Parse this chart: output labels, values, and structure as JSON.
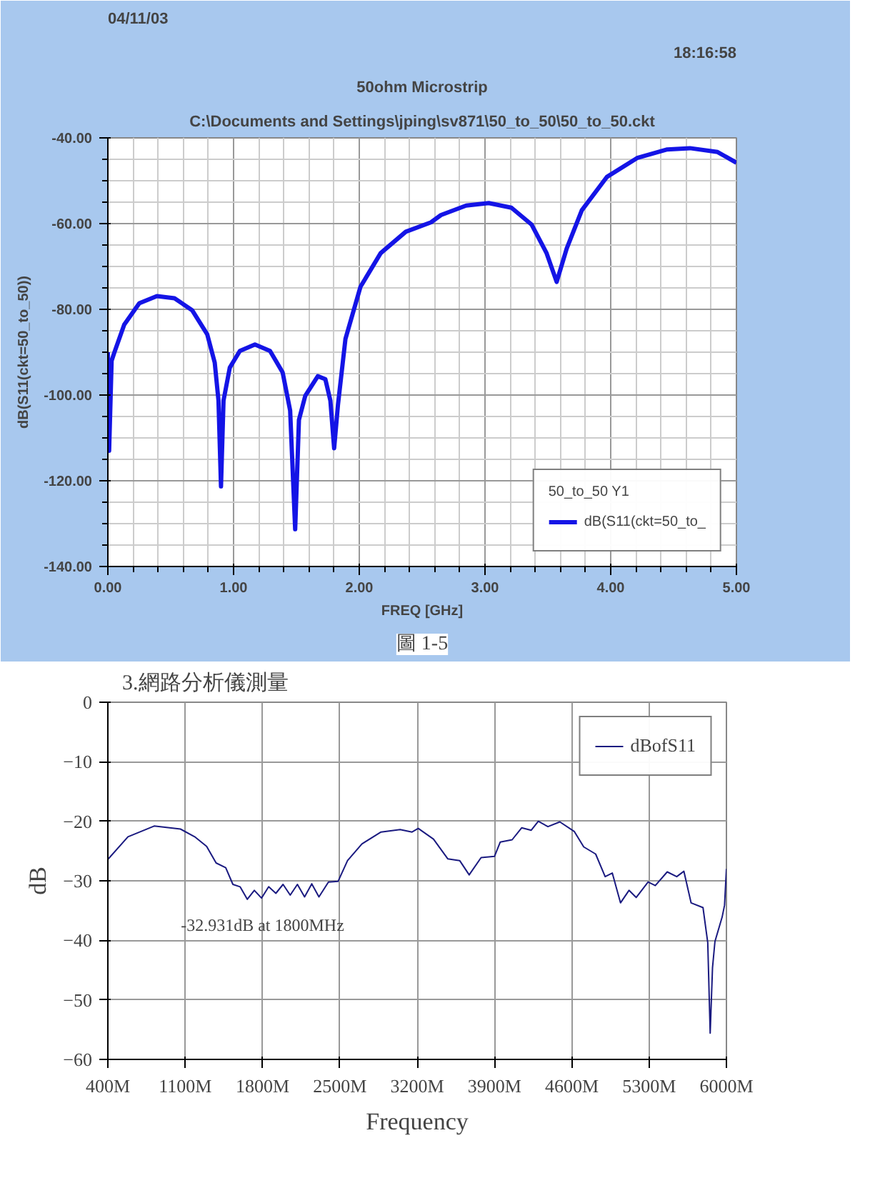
{
  "chart_data": [
    {
      "type": "line",
      "title": "50ohm Microstrip",
      "subtitle": "C:\\Documents and Settings\\jping\\sv871\\50_to_50\\50_to_50.ckt",
      "xlabel": "FREQ [GHz]",
      "ylabel": "dB(S11(ckt=50_to_50))",
      "annotations": [
        "04/11/03",
        "18:16:58",
        "圖 1-5"
      ],
      "legend": "bottom right",
      "legend_title": "50_to_50 Y1",
      "grid": true,
      "xlim": [
        0,
        5
      ],
      "ylim": [
        -140,
        -40
      ],
      "xticks": [
        {
          "value": 0,
          "label": "0.00"
        },
        {
          "value": 1,
          "label": "1.00"
        },
        {
          "value": 2,
          "label": "2.00"
        },
        {
          "value": 3,
          "label": "3.00"
        },
        {
          "value": 4,
          "label": "4.00"
        },
        {
          "value": 5,
          "label": "5.00"
        }
      ],
      "yticks": [
        {
          "value": -140,
          "label": "-140.00"
        },
        {
          "value": -120,
          "label": "-120.00"
        },
        {
          "value": -100,
          "label": "-100.00"
        },
        {
          "value": -80,
          "label": "-80.00"
        },
        {
          "value": -60,
          "label": "-60.00"
        },
        {
          "value": -40,
          "label": "-40.00"
        }
      ],
      "x": [
        0.0,
        0.01,
        0.03,
        0.05,
        0.13,
        0.25,
        0.39,
        0.53,
        0.67,
        0.79,
        0.85,
        0.88,
        0.9,
        0.92,
        0.97,
        1.05,
        1.17,
        1.29,
        1.39,
        1.45,
        1.49,
        1.52,
        1.57,
        1.67,
        1.73,
        1.77,
        1.8,
        1.83,
        1.89,
        2.01,
        2.17,
        2.37,
        2.57,
        2.65,
        2.85,
        3.03,
        3.21,
        3.37,
        3.49,
        3.57,
        3.65,
        3.77,
        3.97,
        4.21,
        4.45,
        4.63,
        4.85,
        5.0
      ],
      "series": [
        {
          "name": "dB(S11(ckt=50_to_",
          "color": "#1414e6",
          "values": [
            -90,
            -113,
            -92,
            -90.2,
            -83.6,
            -78.6,
            -76.9,
            -77.4,
            -80.2,
            -85.8,
            -92.4,
            -101.3,
            -121.3,
            -101.3,
            -93.6,
            -89.7,
            -88.2,
            -89.7,
            -94.7,
            -103.6,
            -131.3,
            -105.8,
            -100.2,
            -95.6,
            -96.3,
            -101.3,
            -112.4,
            -102.4,
            -86.9,
            -74.7,
            -66.9,
            -61.9,
            -59.7,
            -58.0,
            -55.8,
            -55.2,
            -56.3,
            -60.2,
            -66.9,
            -73.6,
            -65.8,
            -56.9,
            -49.1,
            -44.7,
            -42.7,
            -42.4,
            -43.3,
            -45.8
          ]
        }
      ]
    },
    {
      "type": "line",
      "title": "3.網路分析儀測量",
      "xlabel": "Frequency",
      "ylabel": "dB",
      "annotations": [
        {
          "text": "-32.931dB at 1800MHz",
          "x": 1800,
          "y": -32.931
        }
      ],
      "legend": "top right",
      "grid": true,
      "xlim": [
        400,
        6000
      ],
      "ylim": [
        -60,
        0
      ],
      "xticks": [
        {
          "value": 400,
          "label": "400M"
        },
        {
          "value": 1100,
          "label": "1100M"
        },
        {
          "value": 1800,
          "label": "1800M"
        },
        {
          "value": 2500,
          "label": "2500M"
        },
        {
          "value": 3200,
          "label": "3200M"
        },
        {
          "value": 3900,
          "label": "3900M"
        },
        {
          "value": 4600,
          "label": "4600M"
        },
        {
          "value": 5300,
          "label": "5300M"
        },
        {
          "value": 6000,
          "label": "6000M"
        }
      ],
      "yticks": [
        -60,
        -50,
        -40,
        -30,
        -20,
        -10,
        0
      ],
      "x": [
        400,
        582,
        819,
        1057,
        1186,
        1294,
        1380,
        1467,
        1532,
        1597,
        1662,
        1726,
        1791,
        1856,
        1921,
        1986,
        2051,
        2116,
        2181,
        2246,
        2311,
        2397,
        2484,
        2570,
        2700,
        2873,
        3046,
        3154,
        3210,
        3348,
        3477,
        3585,
        3671,
        3779,
        3900,
        3952,
        4060,
        4146,
        4233,
        4297,
        4384,
        4492,
        4622,
        4708,
        4816,
        4902,
        4967,
        5041,
        5118,
        5183,
        5291,
        5356,
        5464,
        5550,
        5615,
        5680,
        5788,
        5831,
        5853,
        5874,
        5896,
        5961,
        5983,
        6000
      ],
      "series": [
        {
          "name": "dBofS11",
          "color": "#1a1a80",
          "values": [
            -26.4,
            -22.6,
            -20.8,
            -21.3,
            -22.6,
            -24.2,
            -27.0,
            -27.8,
            -30.6,
            -31.0,
            -33.1,
            -31.6,
            -32.9,
            -31.0,
            -32.1,
            -30.6,
            -32.4,
            -30.6,
            -32.7,
            -30.5,
            -32.7,
            -30.2,
            -30.1,
            -26.6,
            -23.8,
            -21.8,
            -21.4,
            -21.8,
            -21.2,
            -23.0,
            -26.3,
            -26.6,
            -29.0,
            -26.1,
            -25.9,
            -23.5,
            -23.1,
            -21.1,
            -21.5,
            -20.0,
            -20.9,
            -20.1,
            -21.7,
            -24.3,
            -25.5,
            -29.3,
            -28.7,
            -33.7,
            -31.6,
            -32.8,
            -30.2,
            -30.8,
            -28.5,
            -29.3,
            -28.4,
            -33.7,
            -34.5,
            -40.4,
            -55.6,
            -44.6,
            -40.2,
            -36.1,
            -34.1,
            -28.0
          ]
        }
      ]
    }
  ]
}
